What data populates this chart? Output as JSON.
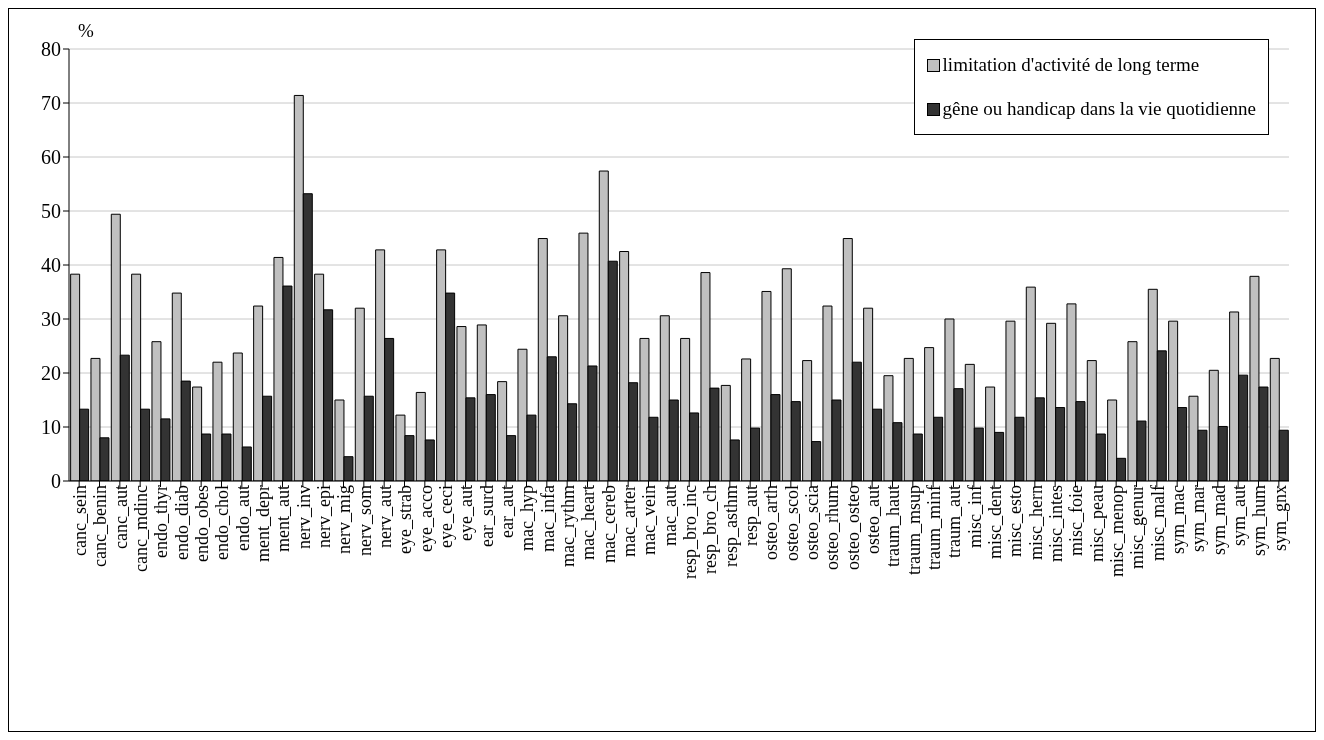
{
  "chart_data": {
    "type": "bar",
    "ylabel": "%",
    "categories": [
      "canc_sein",
      "canc_benin",
      "canc_aut",
      "canc_mdinc",
      "endo_thyr",
      "endo_diab",
      "endo_obes",
      "endo_chol",
      "endo_aut",
      "ment_depr",
      "ment_aut",
      "nerv_inv",
      "nerv_epi",
      "nerv_mig",
      "nerv_som",
      "nerv_aut",
      "eye_strab",
      "eye_acco",
      "eye_ceci",
      "eye_aut",
      "ear_surd",
      "ear_aut",
      "mac_hyp",
      "mac_infa",
      "mac_rythm",
      "mac_heart",
      "mac_cereb",
      "mac_arter",
      "mac_vein",
      "mac_aut",
      "resp_bro_inc",
      "resp_bro_ch",
      "resp_asthm",
      "resp_aut",
      "osteo_arth",
      "osteo_scol",
      "osteo_scia",
      "osteo_rhum",
      "osteo_osteo",
      "osteo_aut",
      "traum_haut",
      "traum_msup",
      "traum_minf",
      "traum_aut",
      "misc_inf",
      "misc_dent",
      "misc_esto",
      "misc_hern",
      "misc_intes",
      "misc_foie",
      "misc_peau",
      "misc_menop",
      "misc_genur",
      "misc_malf",
      "sym_mac",
      "sym_mar",
      "sym_mad",
      "sym_aut",
      "sym_hum",
      "sym_gnx"
    ],
    "series": [
      {
        "name": "limitation d'activité de long terme",
        "color": "#c0c0c0",
        "values": [
          38.3,
          22.7,
          49.4,
          38.3,
          25.8,
          34.8,
          17.4,
          22,
          23.7,
          32.4,
          41.4,
          71.4,
          38.3,
          15,
          32,
          42.8,
          12.2,
          16.4,
          42.8,
          28.6,
          28.9,
          18.4,
          24.4,
          44.9,
          30.6,
          45.9,
          57.4,
          42.5,
          26.4,
          30.6,
          26.4,
          38.6,
          17.7,
          22.6,
          35.1,
          39.3,
          22.3,
          32.4,
          44.9,
          32,
          19.5,
          22.7,
          24.7,
          30,
          21.6,
          17.4,
          29.6,
          35.9,
          29.2,
          32.8,
          22.3,
          15,
          25.8,
          35.5,
          29.6,
          15.7,
          20.5,
          31.3,
          37.9,
          22.7
        ]
      },
      {
        "name": "gêne ou handicap dans la vie quotidienne",
        "color": "#333333",
        "values": [
          13.3,
          8,
          23.3,
          13.3,
          11.5,
          18.5,
          8.7,
          8.7,
          6.3,
          15.7,
          36.1,
          53.2,
          31.7,
          4.5,
          15.7,
          26.4,
          8.4,
          7.6,
          34.8,
          15.4,
          16,
          8.4,
          12.2,
          23,
          14.3,
          21.3,
          40.7,
          18.2,
          11.8,
          15,
          12.6,
          17.2,
          7.6,
          9.8,
          16,
          14.7,
          7.3,
          15,
          22,
          13.3,
          10.8,
          8.7,
          11.8,
          17.1,
          9.8,
          9,
          11.8,
          15.4,
          13.6,
          14.7,
          8.7,
          4.2,
          11.1,
          24.1,
          13.6,
          9.4,
          10.1,
          19.6,
          17.4,
          9.4
        ]
      }
    ],
    "ylim": [
      0,
      80
    ],
    "yticks": [
      0,
      10,
      20,
      30,
      40,
      50,
      60,
      70,
      80
    ],
    "grid": "y",
    "legend": "top right"
  }
}
